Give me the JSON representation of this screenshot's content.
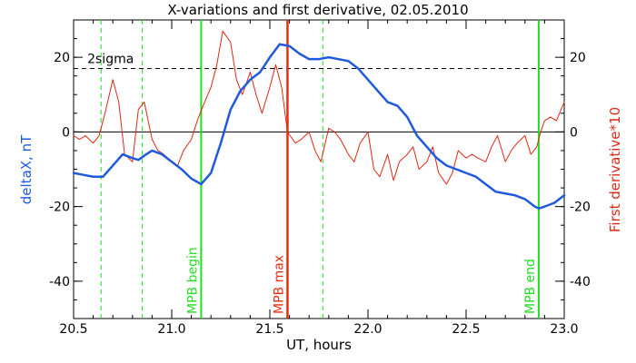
{
  "chart_data": {
    "type": "line",
    "title": "X-variations and first derivative, 02.05.2010",
    "xlabel": "UT, hours",
    "ylabel_left": "deltaX, nT",
    "ylabel_right": "First derivative*10",
    "xlim": [
      20.5,
      23.0
    ],
    "ylim": [
      -50,
      30
    ],
    "x_ticks": [
      20.5,
      21.0,
      21.5,
      22.0,
      22.5,
      23.0
    ],
    "x_tick_labels": [
      "20.5",
      "21.0",
      "21.5",
      "22.0",
      "22.5",
      "23.0"
    ],
    "y_ticks": [
      -40,
      -20,
      0,
      20
    ],
    "y_tick_labels": [
      "-40",
      "-20",
      "0",
      "20"
    ],
    "grid": false,
    "colors": {
      "deltax": "#1f5adc",
      "derivative": "#dc2814",
      "mpb": "#22dd22",
      "max": "#ee2a10",
      "axes": "#000000"
    },
    "reference_lines": [
      {
        "y": 0,
        "style": "solid"
      },
      {
        "y": 17,
        "style": "dashed",
        "label": "2sigma"
      }
    ],
    "markers": [
      {
        "x": 20.64,
        "style": "dashed",
        "label": ""
      },
      {
        "x": 20.85,
        "style": "dashed",
        "label": ""
      },
      {
        "x": 21.15,
        "style": "solid-green",
        "label": "MPB begin"
      },
      {
        "x": 21.59,
        "style": "solid-red",
        "label": "MPB max"
      },
      {
        "x": 21.77,
        "style": "dashed",
        "label": ""
      },
      {
        "x": 22.87,
        "style": "solid-green",
        "label": "MPB end"
      }
    ],
    "series": [
      {
        "key": "deltax",
        "axis_label": "deltaX, nT",
        "x": [
          20.5,
          20.55,
          20.6,
          20.65,
          20.7,
          20.75,
          20.8,
          20.83,
          20.87,
          20.9,
          20.95,
          21.0,
          21.05,
          21.1,
          21.15,
          21.2,
          21.25,
          21.3,
          21.35,
          21.4,
          21.45,
          21.5,
          21.55,
          21.6,
          21.65,
          21.7,
          21.75,
          21.8,
          21.85,
          21.9,
          21.95,
          22.0,
          22.05,
          22.1,
          22.15,
          22.2,
          22.25,
          22.3,
          22.35,
          22.4,
          22.45,
          22.5,
          22.55,
          22.6,
          22.65,
          22.7,
          22.75,
          22.8,
          22.85,
          22.87,
          22.9,
          22.95,
          23.0
        ],
        "y": [
          -11,
          -11.5,
          -12,
          -12,
          -9,
          -6,
          -7,
          -7.5,
          -6,
          -5,
          -6,
          -8,
          -10,
          -12.5,
          -14,
          -11,
          -3,
          6,
          11,
          14,
          16,
          20,
          23.5,
          23,
          21,
          19.5,
          19.5,
          20,
          19.5,
          19,
          17,
          14,
          11,
          8,
          7,
          4,
          -1,
          -4,
          -7,
          -9,
          -10,
          -11,
          -12,
          -14,
          -16,
          -16.5,
          -17,
          -18,
          -20,
          -20.5,
          -20,
          -19,
          -17
        ]
      },
      {
        "key": "derivative",
        "axis_label": "First derivative*10",
        "x": [
          20.5,
          20.53,
          20.56,
          20.6,
          20.63,
          20.66,
          20.7,
          20.73,
          20.76,
          20.8,
          20.83,
          20.86,
          20.9,
          20.93,
          20.96,
          21.0,
          21.03,
          21.06,
          21.1,
          21.13,
          21.16,
          21.2,
          21.23,
          21.26,
          21.3,
          21.33,
          21.36,
          21.4,
          21.43,
          21.46,
          21.5,
          21.53,
          21.56,
          21.59,
          21.63,
          21.66,
          21.7,
          21.73,
          21.76,
          21.8,
          21.83,
          21.86,
          21.9,
          21.93,
          21.96,
          22.0,
          22.03,
          22.06,
          22.1,
          22.13,
          22.16,
          22.2,
          22.23,
          22.26,
          22.3,
          22.33,
          22.36,
          22.4,
          22.43,
          22.46,
          22.5,
          22.53,
          22.56,
          22.6,
          22.63,
          22.66,
          22.7,
          22.73,
          22.76,
          22.8,
          22.83,
          22.86,
          22.88,
          22.9,
          22.93,
          22.96,
          23.0
        ],
        "y": [
          -1,
          -2,
          -1,
          -3,
          -1,
          5,
          14,
          8,
          -6,
          -8,
          6,
          8,
          -2,
          -5,
          -6,
          -8,
          -9,
          -5,
          -2,
          3,
          7,
          12,
          18,
          27,
          24,
          14,
          10,
          16,
          10,
          5,
          12,
          18,
          12,
          0,
          -3,
          -2,
          0,
          -5,
          -8,
          1,
          0,
          -2,
          -6,
          -8,
          -3,
          0,
          -10,
          -12,
          -6,
          -13,
          -8,
          -6,
          -4,
          -10,
          -8,
          -4,
          -11,
          -14,
          -11,
          -5,
          -7,
          -6,
          -7,
          -8,
          -4,
          -1,
          -8,
          -5,
          -3,
          -1,
          -6,
          -4,
          0,
          3,
          4,
          3,
          8
        ]
      }
    ]
  }
}
